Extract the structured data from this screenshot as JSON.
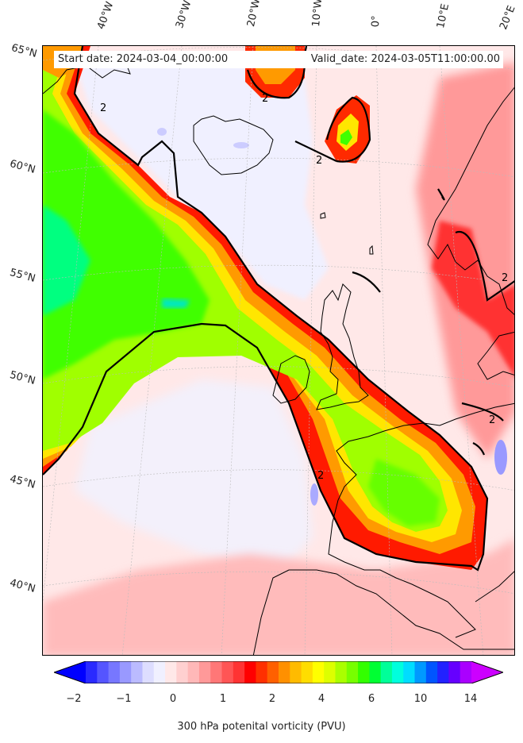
{
  "header": {
    "start_date": "Start date: 2024-03-04_00:00:00",
    "valid_date": "Valid_date: 2024-03-05T11:00:00.00"
  },
  "map": {
    "longitude_labels": [
      "40°W",
      "30°W",
      "20°W",
      "10°W",
      "0°",
      "10°E",
      "20°E"
    ],
    "latitude_labels": [
      "65°N",
      "60°N",
      "55°N",
      "50°N",
      "45°N",
      "40°N"
    ],
    "contour_labels": [
      "2",
      "2",
      "2",
      "2",
      "2",
      "2"
    ],
    "colors": {
      "ocean_low": "#ffe8e8",
      "near_zero": "#f0f0ff",
      "pv_2": "#ff0000",
      "pv_4": "#ff9a00",
      "pv_5": "#ffe600",
      "pv_6": "#a0ff00",
      "pv_8": "#00ff00",
      "coast": "#000000"
    }
  },
  "colorbar": {
    "tick_labels": [
      "−2",
      "−1",
      "0",
      "1",
      "2",
      "4",
      "6",
      "10",
      "14"
    ],
    "label": "300 hPa potenital vorticity (PVU)",
    "colors": [
      "#0000ff",
      "#2a2aff",
      "#5555ff",
      "#7777ff",
      "#9999ff",
      "#bbbbff",
      "#ddddff",
      "#f0f0ff",
      "#ffe8e8",
      "#ffd0d0",
      "#ffb8b8",
      "#ff9999",
      "#ff7777",
      "#ff5555",
      "#ff3333",
      "#ff0000",
      "#ff3000",
      "#ff6000",
      "#ff9000",
      "#ffbb00",
      "#ffdd00",
      "#ffff00",
      "#ddff00",
      "#aaff00",
      "#77ff00",
      "#33ff00",
      "#00ff33",
      "#00ff99",
      "#00ffdd",
      "#00ddff",
      "#0099ff",
      "#0055ff",
      "#2222ff",
      "#6600ff",
      "#aa00ff",
      "#cc00ff"
    ]
  }
}
